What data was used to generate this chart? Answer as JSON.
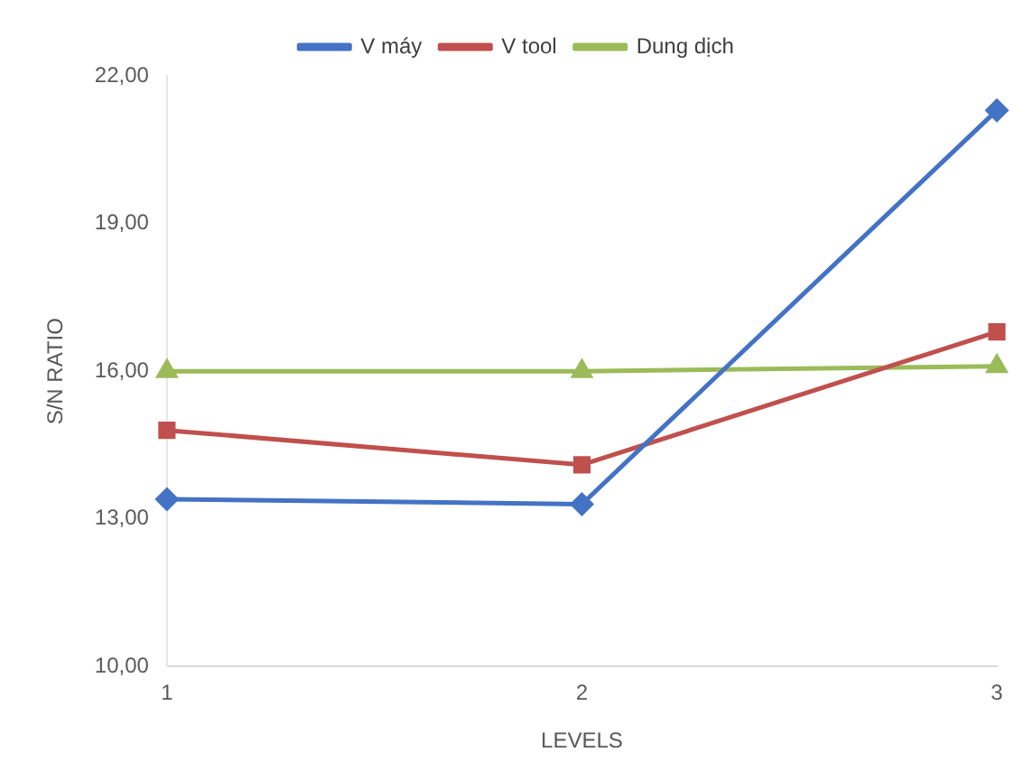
{
  "chart_data": {
    "type": "line",
    "xlabel": "LEVELS",
    "ylabel": "S/N RATIO",
    "categories": [
      "1",
      "2",
      "3"
    ],
    "series": [
      {
        "name": "V máy",
        "color": "#4472c4",
        "marker": "diamond",
        "values": [
          13.4,
          13.3,
          21.3
        ]
      },
      {
        "name": "V tool",
        "color": "#c0504d",
        "marker": "square",
        "values": [
          14.8,
          14.1,
          16.8
        ]
      },
      {
        "name": "Dung dịch",
        "color": "#9bbb59",
        "marker": "triangle",
        "values": [
          16.0,
          16.0,
          16.1
        ]
      }
    ],
    "ylim": [
      10,
      22
    ],
    "yticks": [
      {
        "value": 10,
        "label": "10,00"
      },
      {
        "value": 13,
        "label": "13,00"
      },
      {
        "value": 16,
        "label": "16,00"
      },
      {
        "value": 19,
        "label": "19,00"
      },
      {
        "value": 22,
        "label": "22,00"
      }
    ],
    "grid": false,
    "legend": "top",
    "line_style": "solid"
  }
}
